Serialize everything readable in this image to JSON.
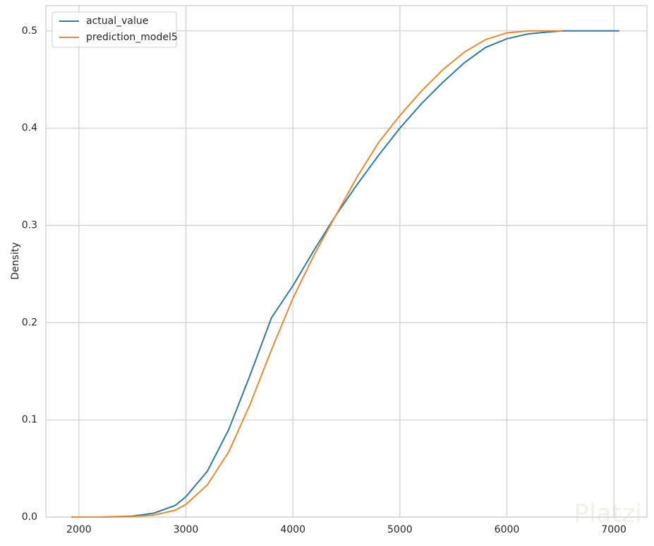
{
  "chart_data": {
    "type": "line",
    "ylabel": "Density",
    "x": [
      1930,
      2200,
      2500,
      2700,
      2900,
      3000,
      3200,
      3400,
      3600,
      3800,
      4000,
      4200,
      4400,
      4600,
      4800,
      5000,
      5200,
      5400,
      5600,
      5800,
      6000,
      6200,
      6400,
      6520,
      6800,
      7050
    ],
    "series": [
      {
        "name": "actual_value",
        "color": "#2f7aa0",
        "values": [
          0,
          0,
          0.001,
          0.004,
          0.012,
          0.021,
          0.047,
          0.09,
          0.146,
          0.205,
          0.238,
          0.275,
          0.31,
          0.342,
          0.372,
          0.4,
          0.425,
          0.447,
          0.467,
          0.483,
          0.492,
          0.497,
          0.499,
          0.5,
          0.5,
          0.5
        ]
      },
      {
        "name": "prediction_model5",
        "color": "#e68a2a",
        "values": [
          0,
          0,
          0.0005,
          0.002,
          0.007,
          0.013,
          0.033,
          0.067,
          0.116,
          0.172,
          0.225,
          0.27,
          0.31,
          0.35,
          0.385,
          0.413,
          0.438,
          0.46,
          0.478,
          0.491,
          0.498,
          0.5,
          0.5,
          0.5,
          null,
          null
        ]
      }
    ],
    "xlim": [
      1691,
      7309
    ],
    "ylim": [
      0,
      0.526
    ],
    "xticks": [
      2000,
      3000,
      4000,
      5000,
      6000,
      7000
    ],
    "yticks": [
      {
        "value": 0,
        "label": "0.0"
      },
      0.1,
      0.2,
      0.3,
      0.4,
      0.5
    ],
    "grid": true,
    "legend": "upper-left"
  },
  "watermark": "Platzi"
}
